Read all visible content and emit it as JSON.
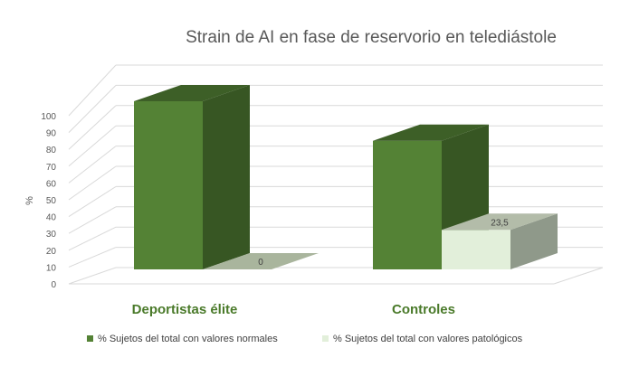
{
  "chart_data": {
    "type": "bar",
    "title": "Strain de AI en fase de reservorio en telediástole",
    "ylabel": "%",
    "xlabel": "",
    "categories": [
      "Deportistas élite",
      "Controles"
    ],
    "series": [
      {
        "name": "% Sujetos del total con valores normales",
        "values": [
          100,
          76.5
        ],
        "labels": [
          "",
          ""
        ]
      },
      {
        "name": "% Sujetos del total con valores patológicos",
        "values": [
          0,
          23.5
        ],
        "labels": [
          "0",
          "23,5"
        ]
      }
    ],
    "ylim": [
      0,
      100
    ],
    "yticks": [
      "0",
      "10",
      "20",
      "30",
      "40",
      "50",
      "60",
      "70",
      "80",
      "90",
      "100"
    ],
    "grid": true,
    "legend": "bottom",
    "colors": {
      "normal_front": "#548235",
      "normal_side": "#375623",
      "normal_top": "#3d5f27",
      "patho_front": "#e2efda",
      "patho_side": "#8f998a",
      "patho_top": "#b3bca9",
      "zero_top": "#a9b59d"
    }
  }
}
